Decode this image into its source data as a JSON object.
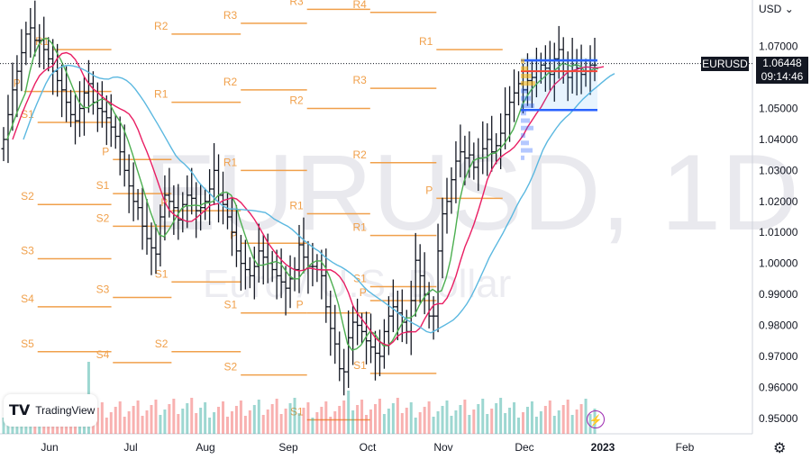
{
  "chart_data": {
    "type": "candlestick",
    "symbol": "EURUSD",
    "watermark_symbol": "EURUSD, 1D",
    "watermark_name": "Euro / U.S. Dollar",
    "currency": "USD",
    "last_price": "1.06448",
    "countdown": "09:14:46",
    "y_range": [
      0.945,
      1.085
    ],
    "y_ticks": [
      "1.07000",
      "1.06000",
      "1.05000",
      "1.04000",
      "1.03000",
      "1.02000",
      "1.01000",
      "1.00000",
      "0.99000",
      "0.98000",
      "0.97000",
      "0.96000",
      "0.95000"
    ],
    "x_ticks": [
      "Jun",
      "Jul",
      "Aug",
      "Sep",
      "Oct",
      "Nov",
      "Dec",
      "2023",
      "Feb"
    ],
    "x_tick_bold": "2023",
    "closes": [
      1.04,
      1.048,
      1.056,
      1.062,
      1.068,
      1.074,
      1.076,
      1.072,
      1.072,
      1.069,
      1.066,
      1.062,
      1.059,
      1.056,
      1.052,
      1.048,
      1.046,
      1.05,
      1.055,
      1.058,
      1.052,
      1.05,
      1.049,
      1.047,
      1.044,
      1.041,
      1.036,
      1.03,
      1.025,
      1.02,
      1.018,
      1.012,
      1.008,
      1.005,
      1.003,
      1.015,
      1.022,
      1.02,
      1.018,
      1.014,
      1.019,
      1.022,
      1.021,
      1.017,
      1.018,
      1.02,
      1.024,
      1.03,
      1.022,
      1.019,
      1.015,
      1.01,
      1.004,
      1.0,
      0.998,
      0.996,
      0.999,
      1.004,
      1.002,
      1.0,
      0.998,
      0.996,
      0.994,
      0.992,
      0.995,
      0.998,
      1.006,
      1.002,
      0.999,
      0.999,
      0.998,
      0.996,
      0.986,
      0.979,
      0.974,
      0.966,
      0.965,
      0.976,
      0.981,
      0.98,
      0.978,
      0.975,
      0.973,
      0.971,
      0.97,
      0.978,
      0.983,
      0.986,
      0.984,
      0.981,
      0.978,
      0.988,
      1.001,
      0.996,
      0.99,
      0.983,
      0.983,
      1.004,
      1.016,
      1.02,
      1.027,
      1.033,
      1.036,
      1.034,
      1.035,
      1.031,
      1.034,
      1.037,
      1.04,
      1.036,
      1.038,
      1.042,
      1.048,
      1.052,
      1.055,
      1.058,
      1.056,
      1.059,
      1.06,
      1.062,
      1.064,
      1.063,
      1.061,
      1.066,
      1.069,
      1.062,
      1.06,
      1.064,
      1.063,
      1.061,
      1.062,
      1.064,
      1.064
    ],
    "pivots": [
      {
        "label": "R1",
        "level": 1.069,
        "x0": 0.07,
        "x1": 0.148
      },
      {
        "label": "P",
        "level": 1.0555,
        "x0": 0.032,
        "x1": 0.148
      },
      {
        "label": "S1",
        "level": 1.0455,
        "x0": 0.05,
        "x1": 0.148
      },
      {
        "label": "S2",
        "level": 1.019,
        "x0": 0.05,
        "x1": 0.148
      },
      {
        "label": "S3",
        "level": 1.0015,
        "x0": 0.05,
        "x1": 0.148
      },
      {
        "label": "S4",
        "level": 0.986,
        "x0": 0.05,
        "x1": 0.148
      },
      {
        "label": "S5",
        "level": 0.9715,
        "x0": 0.05,
        "x1": 0.148
      },
      {
        "label": "R2",
        "level": 1.074,
        "x0": 0.228,
        "x1": 0.32
      },
      {
        "label": "R1",
        "level": 1.052,
        "x0": 0.228,
        "x1": 0.32
      },
      {
        "label": "P",
        "level": 1.0335,
        "x0": 0.15,
        "x1": 0.228
      },
      {
        "label": "S1",
        "level": 1.0225,
        "x0": 0.15,
        "x1": 0.228
      },
      {
        "label": "S2",
        "level": 1.012,
        "x0": 0.15,
        "x1": 0.228
      },
      {
        "label": "S3",
        "level": 0.989,
        "x0": 0.15,
        "x1": 0.228
      },
      {
        "label": "S4",
        "level": 0.968,
        "x0": 0.15,
        "x1": 0.228
      },
      {
        "label": "R3",
        "level": 1.0775,
        "x0": 0.32,
        "x1": 0.408
      },
      {
        "label": "R2",
        "level": 1.056,
        "x0": 0.32,
        "x1": 0.408
      },
      {
        "label": "R1",
        "level": 1.03,
        "x0": 0.32,
        "x1": 0.408
      },
      {
        "label": "P",
        "level": 1.017,
        "x0": 0.228,
        "x1": 0.32
      },
      {
        "label": "S1",
        "level": 0.994,
        "x0": 0.228,
        "x1": 0.32
      },
      {
        "label": "S2",
        "level": 0.9715,
        "x0": 0.228,
        "x1": 0.32
      },
      {
        "label": "R3",
        "level": 1.082,
        "x0": 0.408,
        "x1": 0.492
      },
      {
        "label": "R2",
        "level": 1.05,
        "x0": 0.408,
        "x1": 0.492
      },
      {
        "label": "R1",
        "level": 1.016,
        "x0": 0.408,
        "x1": 0.492
      },
      {
        "label": "P",
        "level": 1.0065,
        "x0": 0.32,
        "x1": 0.408
      },
      {
        "label": "S1",
        "level": 0.984,
        "x0": 0.32,
        "x1": 0.408
      },
      {
        "label": "S2",
        "level": 0.964,
        "x0": 0.32,
        "x1": 0.408
      },
      {
        "label": "P",
        "level": 0.984,
        "x0": 0.408,
        "x1": 0.492
      },
      {
        "label": "S1",
        "level": 0.9495,
        "x0": 0.408,
        "x1": 0.492
      },
      {
        "label": "R4",
        "level": 1.081,
        "x0": 0.492,
        "x1": 0.58
      },
      {
        "label": "R3",
        "level": 1.0565,
        "x0": 0.492,
        "x1": 0.58
      },
      {
        "label": "R2",
        "level": 1.0325,
        "x0": 0.492,
        "x1": 0.58
      },
      {
        "label": "R1",
        "level": 1.009,
        "x0": 0.492,
        "x1": 0.58
      },
      {
        "label": "P",
        "level": 0.988,
        "x0": 0.492,
        "x1": 0.58
      },
      {
        "label": "S1",
        "level": 0.9645,
        "x0": 0.492,
        "x1": 0.58
      },
      {
        "label": "R1",
        "level": 1.069,
        "x0": 0.58,
        "x1": 0.668
      },
      {
        "label": "P",
        "level": 1.021,
        "x0": 0.58,
        "x1": 0.668
      },
      {
        "label": "S1",
        "level": 0.9925,
        "x0": 0.492,
        "x1": 0.58
      }
    ]
  }
}
